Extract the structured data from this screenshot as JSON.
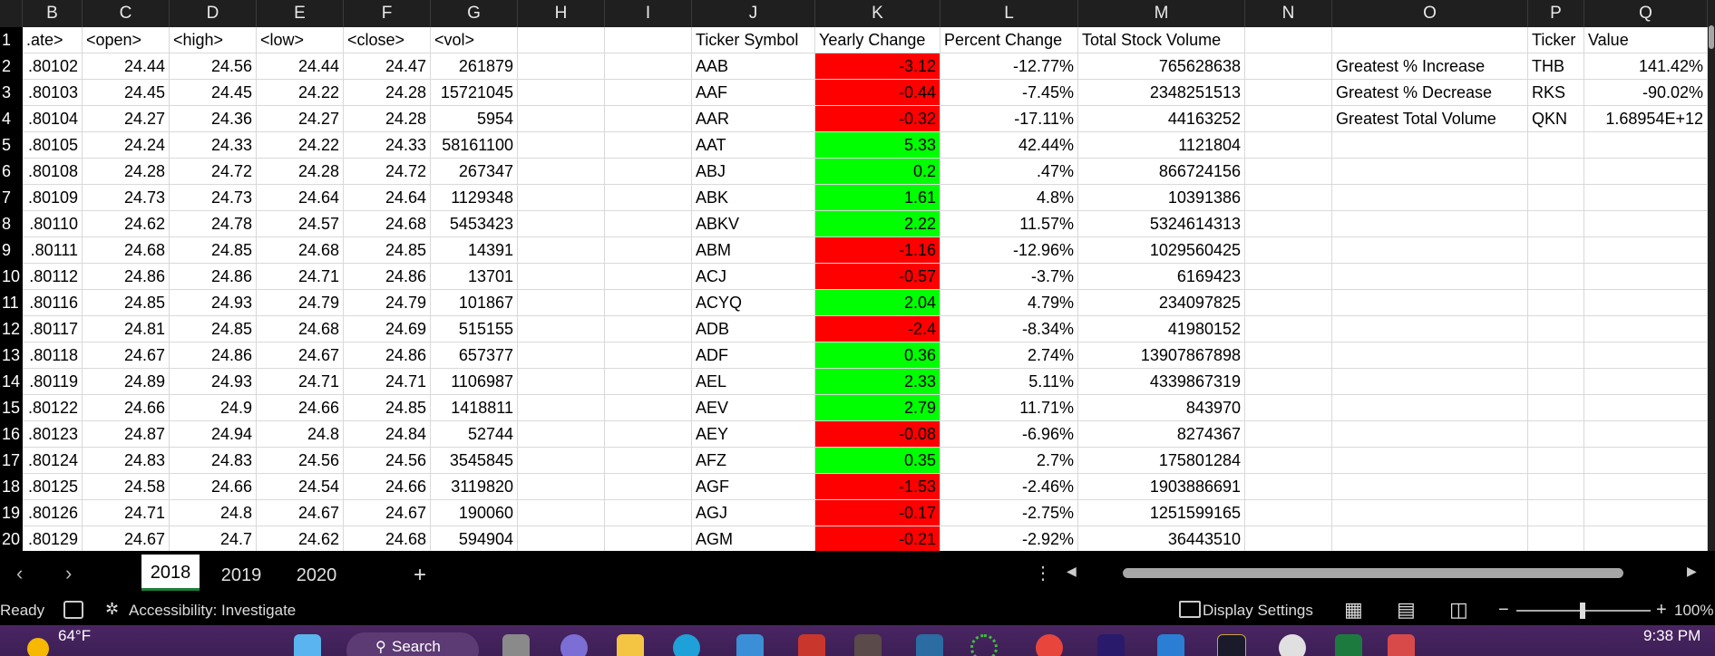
{
  "column_headers": [
    "B",
    "C",
    "D",
    "E",
    "F",
    "G",
    "H",
    "I",
    "J",
    "K",
    "L",
    "M",
    "N",
    "O",
    "P",
    "Q"
  ],
  "row_numbers": [
    "1",
    "2",
    "3",
    "4",
    "5",
    "6",
    "7",
    "8",
    "9",
    "10",
    "11",
    "12",
    "13",
    "14",
    "15",
    "16",
    "17",
    "18",
    "19",
    "20"
  ],
  "left_header": [
    ".ate>",
    "<open>",
    "<high>",
    "<low>",
    "<close>",
    "<vol>"
  ],
  "left_rows": [
    [
      ".80102",
      "24.44",
      "24.56",
      "24.44",
      "24.47",
      "261879"
    ],
    [
      ".80103",
      "24.45",
      "24.45",
      "24.22",
      "24.28",
      "15721045"
    ],
    [
      ".80104",
      "24.27",
      "24.36",
      "24.27",
      "24.28",
      "5954"
    ],
    [
      ".80105",
      "24.24",
      "24.33",
      "24.22",
      "24.33",
      "58161100"
    ],
    [
      ".80108",
      "24.28",
      "24.72",
      "24.28",
      "24.72",
      "267347"
    ],
    [
      ".80109",
      "24.73",
      "24.73",
      "24.64",
      "24.64",
      "1129348"
    ],
    [
      ".80110",
      "24.62",
      "24.78",
      "24.57",
      "24.68",
      "5453423"
    ],
    [
      ".80111",
      "24.68",
      "24.85",
      "24.68",
      "24.85",
      "14391"
    ],
    [
      ".80112",
      "24.86",
      "24.86",
      "24.71",
      "24.86",
      "13701"
    ],
    [
      ".80116",
      "24.85",
      "24.93",
      "24.79",
      "24.79",
      "101867"
    ],
    [
      ".80117",
      "24.81",
      "24.85",
      "24.68",
      "24.69",
      "515155"
    ],
    [
      ".80118",
      "24.67",
      "24.86",
      "24.67",
      "24.86",
      "657377"
    ],
    [
      ".80119",
      "24.89",
      "24.93",
      "24.71",
      "24.71",
      "1106987"
    ],
    [
      ".80122",
      "24.66",
      "24.9",
      "24.66",
      "24.85",
      "1418811"
    ],
    [
      ".80123",
      "24.87",
      "24.94",
      "24.8",
      "24.84",
      "52744"
    ],
    [
      ".80124",
      "24.83",
      "24.83",
      "24.56",
      "24.56",
      "3545845"
    ],
    [
      ".80125",
      "24.58",
      "24.66",
      "24.54",
      "24.66",
      "3119820"
    ],
    [
      ".80126",
      "24.71",
      "24.8",
      "24.67",
      "24.67",
      "190060"
    ],
    [
      ".80129",
      "24.67",
      "24.7",
      "24.62",
      "24.68",
      "594904"
    ]
  ],
  "summary_header": [
    "Ticker Symbol",
    "Yearly Change",
    "Percent Change",
    "Total Stock Volume"
  ],
  "summary_rows": [
    [
      "AAB",
      "-3.12",
      "-12.77%",
      "765628638"
    ],
    [
      "AAF",
      "-0.44",
      "-7.45%",
      "2348251513"
    ],
    [
      "AAR",
      "-0.32",
      "-17.11%",
      "44163252"
    ],
    [
      "AAT",
      "5.33",
      "42.44%",
      "1121804"
    ],
    [
      "ABJ",
      "0.2",
      ".47%",
      "866724156"
    ],
    [
      "ABK",
      "1.61",
      "4.8%",
      "10391386"
    ],
    [
      "ABKV",
      "2.22",
      "11.57%",
      "5324614313"
    ],
    [
      "ABM",
      "-1.16",
      "-12.96%",
      "1029560425"
    ],
    [
      "ACJ",
      "-0.57",
      "-3.7%",
      "6169423"
    ],
    [
      "ACYQ",
      "2.04",
      "4.79%",
      "234097825"
    ],
    [
      "ADB",
      "-2.4",
      "-8.34%",
      "41980152"
    ],
    [
      "ADF",
      "0.36",
      "2.74%",
      "13907867898"
    ],
    [
      "AEL",
      "2.33",
      "5.11%",
      "4339867319"
    ],
    [
      "AEV",
      "2.79",
      "11.71%",
      "843970"
    ],
    [
      "AEY",
      "-0.08",
      "-6.96%",
      "8274367"
    ],
    [
      "AFZ",
      "0.35",
      "2.7%",
      "175801284"
    ],
    [
      "AGF",
      "-1.53",
      "-2.46%",
      "1903886691"
    ],
    [
      "AGJ",
      "-0.17",
      "-2.75%",
      "1251599165"
    ],
    [
      "AGM",
      "-0.21",
      "-2.92%",
      "36443510"
    ]
  ],
  "greatest": {
    "header_ticker": "Ticker",
    "header_value": "Value",
    "rows": [
      [
        "Greatest % Increase",
        "THB",
        "141.42%"
      ],
      [
        "Greatest % Decrease",
        "RKS",
        "-90.02%"
      ],
      [
        "Greatest Total Volume",
        "QKN",
        "1.68954E+12"
      ]
    ]
  },
  "colors": {
    "negative": "#ff0000",
    "positive": "#00ff00",
    "accent": "#1b7f3a"
  },
  "tabs": [
    "2018",
    "2019",
    "2020"
  ],
  "tab_add": "+",
  "status": {
    "ready": "Ready",
    "accessibility": "Accessibility: Investigate",
    "display_settings": "Display Settings",
    "zoom_minus": "−",
    "zoom_plus": "+",
    "zoom_level": "100%"
  },
  "taskbar": {
    "weather": "64°F",
    "search": "Search",
    "time": "9:38 PM"
  }
}
